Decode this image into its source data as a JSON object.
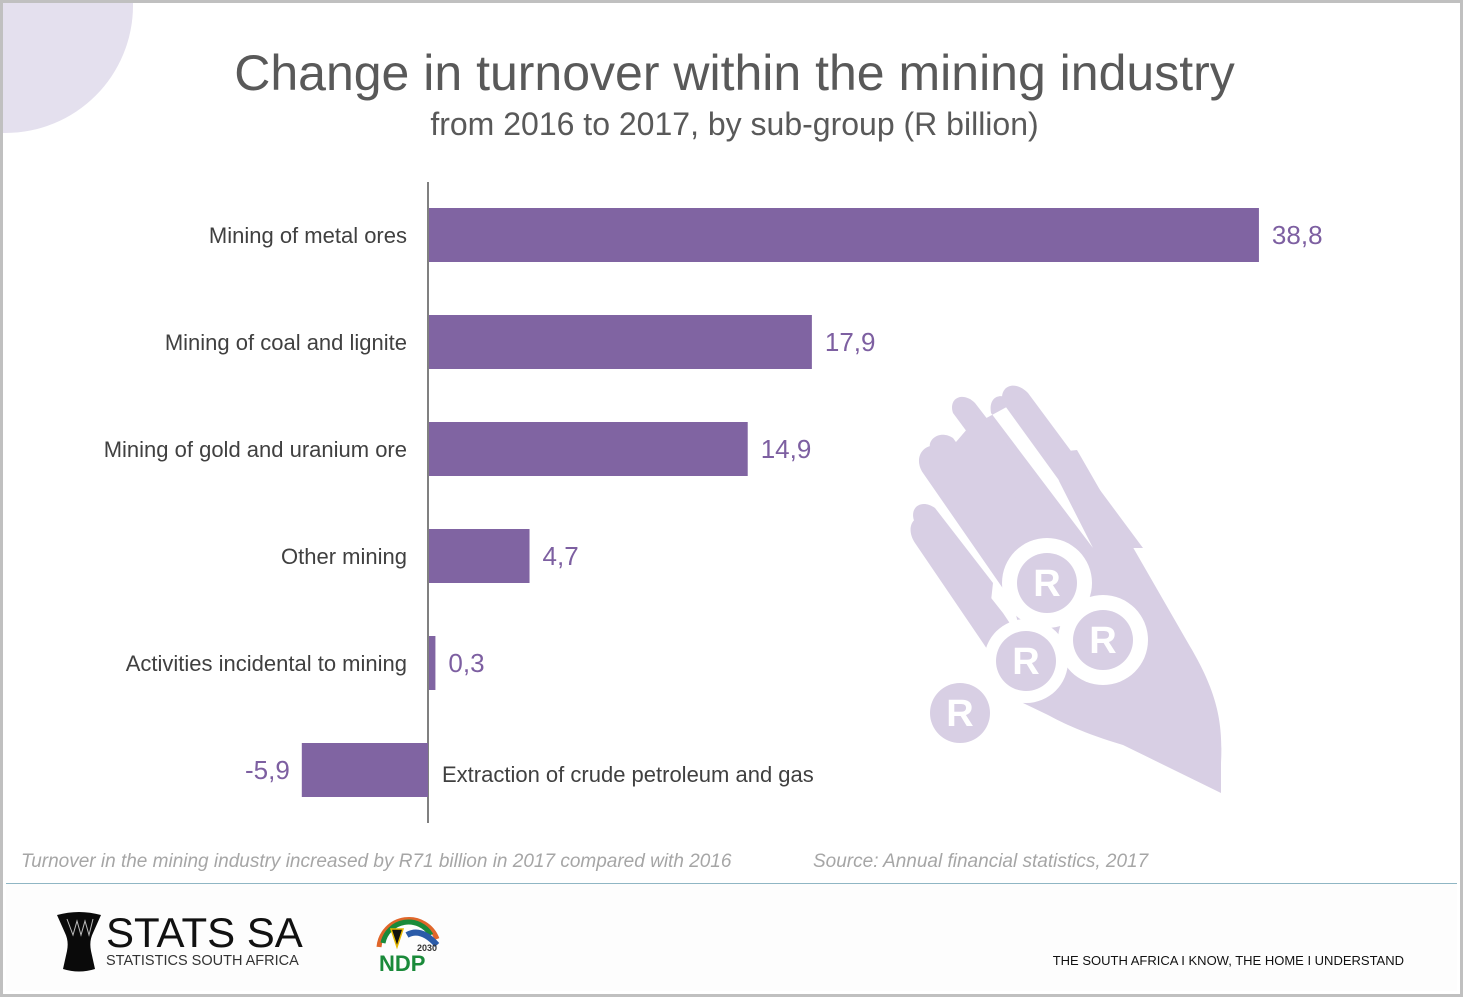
{
  "header": {
    "title": "Change in turnover within the mining industry",
    "subtitle": "from 2016 to 2017, by sub-group (R billion)"
  },
  "chart_data": {
    "type": "bar",
    "orientation": "horizontal",
    "title": "Change in turnover within the mining industry",
    "subtitle": "from 2016 to 2017, by sub-group (R billion)",
    "xlabel": "",
    "ylabel": "",
    "unit": "R billion",
    "categories": [
      "Mining of metal ores",
      "Mining of coal and lignite",
      "Mining of gold and uranium ore",
      "Other mining",
      "Activities incidental to mining",
      "Extraction of crude petroleum and gas"
    ],
    "values": [
      38.8,
      17.9,
      14.9,
      4.7,
      0.3,
      -5.9
    ],
    "value_labels": [
      "38,8",
      "17,9",
      "14,9",
      "4,7",
      "0,3",
      "-5,9"
    ],
    "xlim": [
      -5.9,
      38.8
    ],
    "grid": false,
    "legend": "none",
    "bar_color": "#8064a2",
    "label_color": "#7d5fa1"
  },
  "notes": {
    "summary": "Turnover in the mining industry increased by R71 billion in 2017 compared with 2016",
    "source": "Source: Annual financial statistics, 2017"
  },
  "footer": {
    "brand_name": "STATS SA",
    "brand_subtitle": "STATISTICS SOUTH AFRICA",
    "ndp_year": "2030",
    "ndp_label": "NDP",
    "tagline": "THE SOUTH AFRICA I KNOW, THE HOME I UNDERSTAND"
  },
  "decoration": {
    "coin_symbol": "R",
    "illustration_color": "#d8cfe4"
  }
}
